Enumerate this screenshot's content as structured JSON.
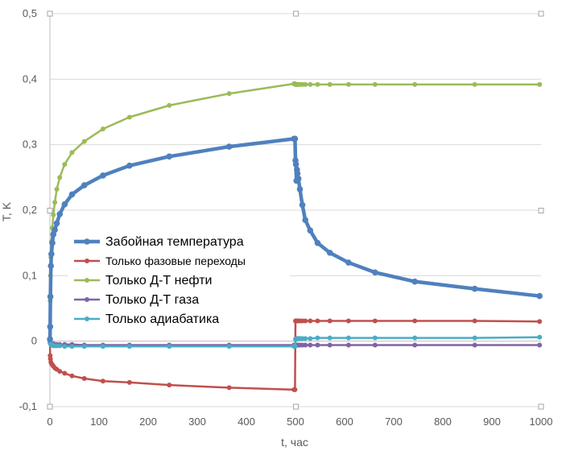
{
  "chart_data": {
    "type": "line",
    "title": "",
    "xlabel": "t, час",
    "ylabel": "T, K",
    "xlim": [
      0,
      1000
    ],
    "ylim": [
      -0.1,
      0.5
    ],
    "grid": "horizontal",
    "legend_position": "center-left",
    "x_ticks": [
      "0",
      "100",
      "200",
      "300",
      "400",
      "500",
      "600",
      "700",
      "800",
      "900",
      "1000"
    ],
    "y_ticks": [
      "-0,1",
      "0",
      "0,1",
      "0,2",
      "0,3",
      "0,4",
      "0,5"
    ],
    "series": [
      {
        "name": "Забойная температура",
        "color": "#4F81BD",
        "emphasis": true,
        "x": [
          0.1,
          0.5,
          1,
          2,
          3,
          5,
          7,
          10,
          14,
          20,
          30,
          45,
          70,
          108,
          162,
          243,
          365,
          497,
          499,
          500,
          501,
          502,
          503,
          504,
          506,
          509,
          514,
          520,
          530,
          545,
          570,
          608,
          662,
          743,
          865,
          997
        ],
        "y": [
          0.003,
          0.022,
          0.068,
          0.115,
          0.133,
          0.15,
          0.163,
          0.17,
          0.18,
          0.194,
          0.209,
          0.224,
          0.238,
          0.253,
          0.268,
          0.282,
          0.297,
          0.309,
          0.309,
          0.276,
          0.27,
          0.245,
          0.262,
          0.256,
          0.248,
          0.232,
          0.208,
          0.185,
          0.169,
          0.15,
          0.135,
          0.12,
          0.105,
          0.091,
          0.08,
          0.069
        ]
      },
      {
        "name": "Только фазовые переходы",
        "color": "#C0504D",
        "x": [
          0.1,
          0.5,
          1,
          2,
          3,
          5,
          7,
          10,
          14,
          20,
          30,
          45,
          70,
          108,
          162,
          243,
          365,
          497,
          499,
          500,
          501,
          502,
          503,
          504,
          506,
          509,
          514,
          520,
          530,
          545,
          570,
          608,
          662,
          743,
          865,
          997
        ],
        "y": [
          -0.001,
          -0.022,
          -0.027,
          -0.032,
          -0.034,
          -0.036,
          -0.038,
          -0.041,
          -0.043,
          -0.046,
          -0.049,
          -0.053,
          -0.057,
          -0.061,
          -0.063,
          -0.067,
          -0.071,
          -0.074,
          -0.074,
          0.031,
          0.031,
          0.031,
          0.031,
          0.031,
          0.031,
          0.031,
          0.031,
          0.031,
          0.031,
          0.031,
          0.031,
          0.031,
          0.031,
          0.031,
          0.031,
          0.03
        ]
      },
      {
        "name": "Только Д-Т нефти",
        "color": "#9BBB59",
        "x": [
          0.1,
          0.5,
          1,
          2,
          3,
          5,
          7,
          10,
          14,
          20,
          30,
          45,
          70,
          108,
          162,
          243,
          365,
          497,
          499,
          500,
          501,
          502,
          503,
          504,
          506,
          509,
          514,
          520,
          530,
          545,
          570,
          608,
          662,
          743,
          865,
          997
        ],
        "y": [
          0.003,
          0.062,
          0.1,
          0.128,
          0.152,
          0.173,
          0.193,
          0.212,
          0.232,
          0.25,
          0.27,
          0.288,
          0.305,
          0.324,
          0.342,
          0.36,
          0.378,
          0.393,
          0.393,
          0.392,
          0.392,
          0.392,
          0.392,
          0.392,
          0.392,
          0.392,
          0.392,
          0.392,
          0.392,
          0.392,
          0.392,
          0.392,
          0.392,
          0.392,
          0.392,
          0.392
        ]
      },
      {
        "name": "Только Д-Т газа",
        "color": "#8064A2",
        "x": [
          0.1,
          0.5,
          1,
          2,
          3,
          5,
          7,
          10,
          14,
          20,
          30,
          45,
          70,
          108,
          162,
          243,
          365,
          497,
          499,
          500,
          501,
          502,
          503,
          504,
          506,
          509,
          514,
          520,
          530,
          545,
          570,
          608,
          662,
          743,
          865,
          997
        ],
        "y": [
          -0.001,
          -0.003,
          -0.003,
          -0.004,
          -0.004,
          -0.004,
          -0.004,
          -0.005,
          -0.005,
          -0.005,
          -0.005,
          -0.005,
          -0.006,
          -0.006,
          -0.006,
          -0.006,
          -0.006,
          -0.006,
          -0.006,
          -0.006,
          -0.006,
          -0.006,
          -0.006,
          -0.006,
          -0.006,
          -0.006,
          -0.006,
          -0.006,
          -0.006,
          -0.006,
          -0.006,
          -0.006,
          -0.006,
          -0.006,
          -0.006,
          -0.006
        ]
      },
      {
        "name": "Только адиабатика",
        "color": "#4BACC6",
        "x": [
          0.1,
          0.5,
          1,
          2,
          3,
          5,
          7,
          10,
          14,
          20,
          30,
          45,
          70,
          108,
          162,
          243,
          365,
          497,
          499,
          500,
          501,
          502,
          503,
          504,
          506,
          509,
          514,
          520,
          530,
          545,
          570,
          608,
          662,
          743,
          865,
          997
        ],
        "y": [
          -0.001,
          -0.002,
          -0.003,
          -0.005,
          -0.006,
          -0.006,
          -0.007,
          -0.007,
          -0.007,
          -0.007,
          -0.008,
          -0.008,
          -0.008,
          -0.008,
          -0.008,
          -0.008,
          -0.008,
          -0.008,
          -0.008,
          0.003,
          0.003,
          0.003,
          0.004,
          0.004,
          0.004,
          0.004,
          0.004,
          0.004,
          0.004,
          0.005,
          0.005,
          0.005,
          0.005,
          0.005,
          0.005,
          0.006
        ]
      }
    ]
  }
}
